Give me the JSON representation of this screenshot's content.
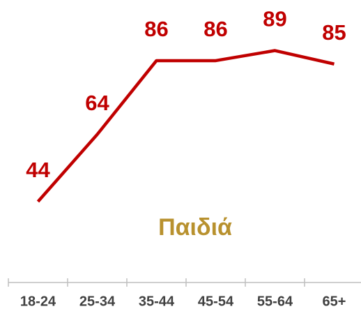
{
  "chart_data": {
    "type": "line",
    "categories": [
      "18-24",
      "25-34",
      "35-44",
      "45-54",
      "55-64",
      "65+"
    ],
    "series": [
      {
        "name": "Παιδιά",
        "color": "#c00000",
        "values": [
          44,
          64,
          86,
          86,
          89,
          85
        ]
      }
    ]
  }
}
